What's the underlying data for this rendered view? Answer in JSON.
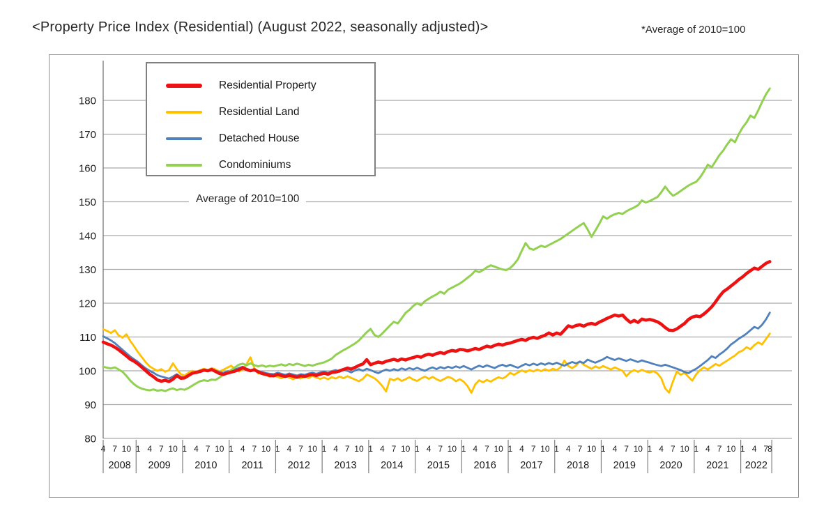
{
  "page": {
    "title": "<Property Price Index (Residential) (August 2022, seasonally adjusted)>",
    "note": "*Average of 2010=100"
  },
  "annotation": {
    "text": "Average of 2010=100"
  },
  "chart_data": {
    "type": "line",
    "title": "Property Price Index (Residential) (August 2022, seasonally adjusted)",
    "grid": true,
    "legend_position": "top-left",
    "ylim": [
      80,
      185
    ],
    "yticks": [
      80,
      90,
      100,
      110,
      120,
      130,
      140,
      150,
      160,
      170,
      180
    ],
    "x": {
      "start": "2008-04",
      "end": "2022-08",
      "interval": "month",
      "years": [
        2008,
        2009,
        2010,
        2011,
        2012,
        2013,
        2014,
        2015,
        2016,
        2017,
        2018,
        2019,
        2020,
        2021,
        2022
      ],
      "tick_months": {
        "2008": [
          4,
          7,
          10
        ],
        "default": [
          1,
          4,
          7,
          10
        ],
        "2022": [
          1,
          4,
          7,
          8
        ]
      }
    },
    "colors": {
      "grid": "#a9a9a9",
      "axis": "#808080",
      "text": "#1a1a1a"
    },
    "series": [
      {
        "name": "Residential Property",
        "color": "#ee1111",
        "line_width": 4.5,
        "values": [
          108.5,
          108.0,
          107.6,
          107.0,
          106.2,
          105.3,
          104.4,
          103.4,
          102.8,
          102.0,
          101.0,
          100.0,
          99.0,
          98.2,
          97.3,
          96.9,
          97.2,
          96.8,
          97.5,
          98.6,
          97.8,
          97.9,
          98.6,
          99.3,
          99.5,
          99.8,
          100.2,
          100.0,
          100.4,
          99.8,
          99.2,
          98.9,
          99.3,
          99.6,
          99.9,
          100.3,
          100.9,
          100.4,
          100.0,
          100.3,
          99.7,
          99.2,
          98.9,
          98.6,
          98.5,
          98.9,
          98.6,
          98.3,
          98.7,
          98.4,
          98.1,
          98.5,
          98.3,
          98.7,
          98.9,
          98.6,
          99.0,
          99.3,
          99.0,
          99.5,
          99.6,
          100.0,
          100.4,
          100.8,
          100.5,
          101.0,
          101.6,
          102.0,
          103.3,
          101.8,
          102.2,
          102.6,
          102.3,
          102.8,
          103.1,
          103.4,
          103.0,
          103.5,
          103.2,
          103.6,
          103.9,
          104.3,
          104.0,
          104.6,
          104.9,
          104.6,
          105.1,
          105.4,
          105.1,
          105.7,
          106.0,
          105.8,
          106.3,
          106.2,
          105.9,
          106.2,
          106.6,
          106.3,
          106.8,
          107.3,
          107.0,
          107.5,
          107.9,
          107.6,
          108.0,
          108.2,
          108.6,
          109.0,
          109.3,
          109.0,
          109.6,
          109.9,
          109.6,
          110.1,
          110.5,
          111.2,
          110.6,
          111.2,
          110.8,
          112.0,
          113.3,
          112.9,
          113.4,
          113.6,
          113.2,
          113.8,
          114.0,
          113.7,
          114.4,
          114.9,
          115.5,
          116.0,
          116.5,
          116.2,
          116.5,
          115.3,
          114.3,
          114.9,
          114.3,
          115.3,
          115.0,
          115.2,
          114.9,
          114.5,
          113.8,
          112.8,
          112.0,
          111.9,
          112.4,
          113.2,
          114.0,
          115.2,
          115.9,
          116.2,
          116.0,
          116.8,
          117.8,
          118.9,
          120.4,
          122.0,
          123.4,
          124.2,
          125.1,
          126.0,
          127.0,
          127.8,
          128.8,
          129.6,
          130.4,
          130.0,
          130.9,
          131.8,
          132.3
        ]
      },
      {
        "name": "Residential Land",
        "color": "#ffc000",
        "line_width": 2.8,
        "values": [
          112.3,
          111.8,
          111.2,
          112.0,
          110.5,
          109.8,
          110.8,
          108.8,
          107.2,
          105.5,
          104.0,
          102.5,
          101.3,
          100.6,
          100.0,
          100.5,
          99.7,
          100.2,
          102.2,
          100.5,
          99.0,
          98.6,
          99.4,
          100.0,
          99.6,
          100.2,
          100.6,
          100.2,
          100.8,
          100.4,
          99.8,
          100.3,
          100.9,
          101.5,
          100.6,
          99.8,
          100.4,
          102.0,
          104.0,
          100.8,
          99.2,
          99.6,
          98.8,
          98.2,
          98.6,
          98.2,
          97.8,
          98.4,
          98.0,
          97.5,
          98.1,
          97.7,
          98.3,
          97.9,
          98.5,
          98.0,
          97.6,
          98.0,
          97.5,
          98.1,
          97.7,
          98.3,
          97.8,
          98.4,
          97.9,
          97.4,
          96.9,
          97.6,
          98.9,
          98.4,
          97.8,
          96.8,
          95.5,
          93.9,
          97.6,
          97.2,
          97.8,
          97.0,
          97.5,
          98.1,
          97.4,
          97.0,
          97.7,
          98.3,
          97.6,
          98.2,
          97.5,
          97.0,
          97.6,
          98.2,
          97.8,
          96.9,
          97.5,
          96.8,
          95.5,
          93.5,
          96.0,
          97.2,
          96.6,
          97.3,
          96.8,
          97.5,
          98.1,
          97.7,
          98.3,
          99.4,
          98.8,
          99.5,
          100.1,
          99.6,
          100.2,
          99.8,
          100.4,
          99.9,
          100.5,
          100.0,
          100.6,
          100.2,
          101.0,
          103.0,
          101.4,
          100.8,
          101.5,
          102.8,
          101.8,
          101.2,
          100.6,
          101.3,
          100.8,
          101.4,
          100.9,
          100.4,
          101.0,
          100.5,
          100.0,
          98.4,
          99.6,
          100.2,
          99.7,
          100.3,
          99.8,
          99.5,
          99.9,
          99.2,
          97.8,
          94.8,
          93.5,
          96.8,
          99.8,
          98.8,
          99.4,
          98.2,
          97.1,
          99.0,
          100.2,
          101.0,
          100.4,
          101.2,
          102.0,
          101.5,
          102.3,
          103.0,
          103.8,
          104.5,
          105.5,
          106.0,
          107.0,
          106.4,
          107.6,
          108.4,
          107.8,
          109.4,
          111.0
        ]
      },
      {
        "name": "Detached House",
        "color": "#4f81bd",
        "line_width": 2.8,
        "values": [
          110.2,
          109.6,
          109.0,
          108.2,
          107.2,
          106.2,
          105.2,
          104.2,
          103.4,
          102.6,
          101.6,
          100.7,
          100.0,
          99.4,
          98.7,
          98.3,
          98.0,
          97.7,
          98.3,
          99.0,
          98.2,
          98.0,
          98.8,
          99.4,
          99.7,
          100.0,
          100.3,
          100.1,
          100.5,
          100.0,
          99.6,
          99.4,
          99.8,
          100.1,
          100.4,
          100.8,
          101.2,
          100.6,
          100.2,
          100.5,
          99.9,
          99.6,
          99.3,
          99.1,
          99.0,
          99.4,
          99.1,
          98.8,
          99.2,
          98.9,
          98.6,
          99.0,
          98.8,
          99.2,
          99.4,
          99.1,
          99.5,
          99.8,
          99.4,
          99.9,
          100.2,
          99.7,
          100.3,
          100.0,
          99.5,
          100.1,
          100.5,
          100.0,
          100.6,
          100.2,
          99.7,
          99.3,
          99.9,
          100.4,
          100.0,
          100.5,
          100.1,
          100.7,
          100.3,
          100.8,
          100.4,
          100.9,
          100.4,
          100.0,
          100.6,
          101.0,
          100.5,
          101.1,
          100.7,
          101.2,
          100.8,
          101.3,
          100.9,
          101.4,
          100.9,
          100.4,
          101.0,
          101.5,
          101.1,
          101.6,
          101.2,
          100.8,
          101.4,
          101.8,
          101.3,
          101.8,
          101.3,
          100.9,
          101.5,
          102.0,
          101.6,
          102.1,
          101.7,
          102.2,
          101.8,
          102.3,
          101.9,
          102.4,
          101.9,
          101.5,
          102.1,
          102.6,
          102.2,
          102.7,
          102.3,
          103.3,
          102.8,
          102.4,
          102.9,
          103.4,
          104.1,
          103.6,
          103.2,
          103.7,
          103.3,
          102.9,
          103.4,
          103.0,
          102.6,
          103.1,
          102.7,
          102.4,
          102.0,
          101.7,
          101.4,
          101.8,
          101.4,
          101.0,
          100.6,
          100.2,
          99.6,
          99.3,
          100.0,
          100.6,
          101.4,
          102.3,
          103.2,
          104.3,
          103.8,
          104.8,
          105.6,
          106.6,
          107.8,
          108.6,
          109.5,
          110.2,
          111.0,
          112.0,
          113.0,
          112.5,
          113.6,
          115.2,
          117.2
        ]
      },
      {
        "name": "Condominiums",
        "color": "#92d050",
        "line_width": 3,
        "values": [
          101.2,
          100.9,
          100.7,
          101.0,
          100.4,
          99.7,
          98.5,
          97.1,
          96.0,
          95.2,
          94.7,
          94.4,
          94.2,
          94.5,
          94.1,
          94.3,
          94.0,
          94.5,
          94.8,
          94.3,
          94.6,
          94.4,
          94.9,
          95.6,
          96.3,
          96.9,
          97.2,
          97.0,
          97.4,
          97.3,
          98.0,
          98.8,
          99.4,
          100.2,
          101.0,
          101.8,
          102.1,
          101.6,
          102.2,
          101.7,
          101.3,
          101.6,
          101.2,
          101.5,
          101.3,
          101.6,
          101.9,
          101.5,
          102.0,
          101.7,
          102.1,
          101.8,
          101.4,
          101.8,
          101.5,
          101.9,
          102.2,
          102.5,
          103.0,
          103.6,
          104.7,
          105.4,
          106.1,
          106.7,
          107.4,
          108.1,
          109.0,
          110.2,
          111.4,
          112.4,
          110.6,
          110.0,
          111.0,
          112.2,
          113.4,
          114.5,
          114.0,
          115.5,
          117.1,
          118.0,
          119.2,
          120.0,
          119.4,
          120.6,
          121.3,
          122.0,
          122.6,
          123.4,
          122.8,
          124.0,
          124.6,
          125.2,
          125.8,
          126.6,
          127.5,
          128.4,
          129.6,
          129.2,
          129.8,
          130.6,
          131.2,
          130.8,
          130.4,
          130.0,
          129.8,
          130.4,
          131.5,
          133.0,
          135.5,
          137.8,
          136.2,
          135.8,
          136.4,
          137.0,
          136.6,
          137.2,
          137.8,
          138.4,
          139.0,
          139.8,
          140.6,
          141.4,
          142.2,
          143.0,
          143.7,
          141.8,
          139.6,
          141.5,
          143.5,
          145.7,
          145.0,
          145.8,
          146.3,
          146.7,
          146.4,
          147.2,
          147.8,
          148.3,
          149.0,
          150.4,
          149.8,
          150.2,
          150.8,
          151.4,
          152.8,
          154.5,
          153.0,
          151.8,
          152.4,
          153.2,
          154.0,
          154.8,
          155.4,
          155.9,
          157.2,
          159.0,
          161.0,
          160.2,
          162.0,
          163.8,
          165.2,
          167.0,
          168.5,
          167.6,
          170.0,
          172.0,
          173.5,
          175.5,
          174.8,
          177.0,
          179.5,
          181.8,
          183.5
        ]
      }
    ]
  }
}
